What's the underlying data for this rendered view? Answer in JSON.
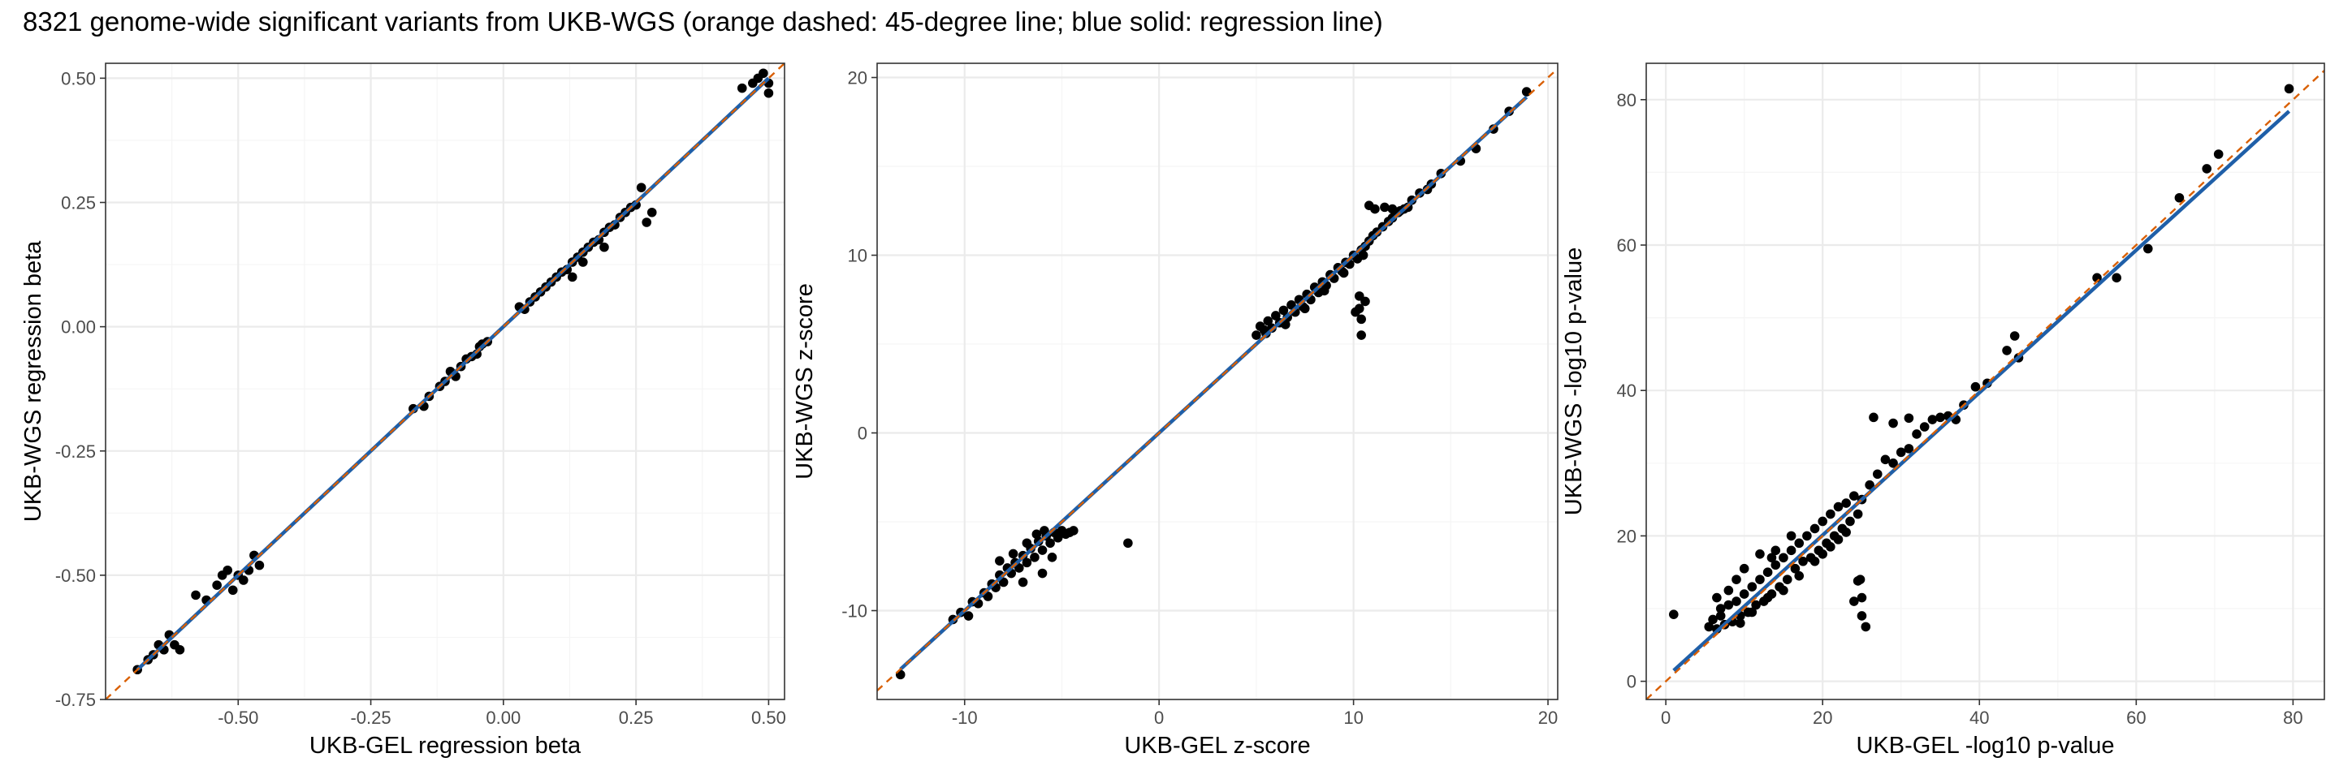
{
  "title": "8321 genome-wide significant variants from UKB-WGS (orange dashed: 45-degree line; blue solid: regression line)",
  "colors": {
    "points": "#000000",
    "identity_line": "#d95f02",
    "regression_line": "#1f5fa8",
    "grid_major": "#ebebeb",
    "grid_minor": "#f5f5f5",
    "panel_border": "#333333"
  },
  "chart_data": [
    {
      "type": "scatter",
      "xlabel": "UKB-GEL regression beta",
      "ylabel": "UKB-WGS regression beta",
      "xlim": [
        -0.75,
        0.53
      ],
      "ylim": [
        -0.75,
        0.53
      ],
      "xticks": [
        -0.5,
        -0.25,
        0.0,
        0.25,
        0.5
      ],
      "xtick_labels": [
        "-0.50",
        "-0.25",
        "0.00",
        "0.25",
        "0.50"
      ],
      "yticks": [
        -0.75,
        -0.5,
        -0.25,
        0.0,
        0.25,
        0.5
      ],
      "ytick_labels": [
        "-0.75",
        "-0.50",
        "-0.25",
        "0.00",
        "0.25",
        "0.50"
      ],
      "identity_line": true,
      "regression": {
        "slope": 1.0,
        "intercept": 0.0
      },
      "points": [
        [
          -0.69,
          -0.69
        ],
        [
          -0.67,
          -0.67
        ],
        [
          -0.66,
          -0.66
        ],
        [
          -0.65,
          -0.64
        ],
        [
          -0.64,
          -0.65
        ],
        [
          -0.63,
          -0.62
        ],
        [
          -0.62,
          -0.64
        ],
        [
          -0.61,
          -0.65
        ],
        [
          -0.58,
          -0.54
        ],
        [
          -0.56,
          -0.55
        ],
        [
          -0.54,
          -0.52
        ],
        [
          -0.53,
          -0.5
        ],
        [
          -0.52,
          -0.49
        ],
        [
          -0.51,
          -0.53
        ],
        [
          -0.5,
          -0.5
        ],
        [
          -0.49,
          -0.51
        ],
        [
          -0.48,
          -0.49
        ],
        [
          -0.47,
          -0.46
        ],
        [
          -0.46,
          -0.48
        ],
        [
          -0.17,
          -0.165
        ],
        [
          -0.15,
          -0.16
        ],
        [
          -0.14,
          -0.14
        ],
        [
          -0.12,
          -0.12
        ],
        [
          -0.11,
          -0.11
        ],
        [
          -0.1,
          -0.09
        ],
        [
          -0.09,
          -0.1
        ],
        [
          -0.08,
          -0.08
        ],
        [
          -0.07,
          -0.065
        ],
        [
          -0.06,
          -0.06
        ],
        [
          -0.05,
          -0.055
        ],
        [
          -0.045,
          -0.04
        ],
        [
          -0.04,
          -0.035
        ],
        [
          -0.03,
          -0.03
        ],
        [
          0.03,
          0.04
        ],
        [
          0.04,
          0.035
        ],
        [
          0.05,
          0.05
        ],
        [
          0.06,
          0.06
        ],
        [
          0.07,
          0.07
        ],
        [
          0.08,
          0.08
        ],
        [
          0.09,
          0.09
        ],
        [
          0.1,
          0.1
        ],
        [
          0.11,
          0.11
        ],
        [
          0.12,
          0.115
        ],
        [
          0.13,
          0.13
        ],
        [
          0.14,
          0.14
        ],
        [
          0.15,
          0.15
        ],
        [
          0.16,
          0.16
        ],
        [
          0.17,
          0.17
        ],
        [
          0.18,
          0.175
        ],
        [
          0.19,
          0.19
        ],
        [
          0.2,
          0.2
        ],
        [
          0.21,
          0.205
        ],
        [
          0.22,
          0.22
        ],
        [
          0.23,
          0.23
        ],
        [
          0.24,
          0.24
        ],
        [
          0.25,
          0.245
        ],
        [
          0.13,
          0.1
        ],
        [
          0.15,
          0.13
        ],
        [
          0.19,
          0.16
        ],
        [
          0.26,
          0.28
        ],
        [
          0.28,
          0.23
        ],
        [
          0.27,
          0.21
        ],
        [
          0.45,
          0.48
        ],
        [
          0.47,
          0.49
        ],
        [
          0.48,
          0.5
        ],
        [
          0.49,
          0.51
        ],
        [
          0.5,
          0.49
        ],
        [
          0.5,
          0.47
        ]
      ]
    },
    {
      "type": "scatter",
      "xlabel": "UKB-GEL z-score",
      "ylabel": "UKB-WGS z-score",
      "xlim": [
        -14.5,
        20.5
      ],
      "ylim": [
        -15,
        20.8
      ],
      "xticks": [
        -10,
        0,
        10,
        20
      ],
      "xtick_labels": [
        "-10",
        "0",
        "10",
        "20"
      ],
      "yticks": [
        -10,
        0,
        10,
        20
      ],
      "ytick_labels": [
        "-10",
        "0",
        "10",
        "20"
      ],
      "identity_line": true,
      "regression": {
        "slope": 1.0,
        "intercept": 0.0
      },
      "points": [
        [
          -13.3,
          -13.6
        ],
        [
          -10.6,
          -10.5
        ],
        [
          -10.2,
          -10.1
        ],
        [
          -9.8,
          -10.3
        ],
        [
          -9.6,
          -9.5
        ],
        [
          -9.3,
          -9.6
        ],
        [
          -9.0,
          -9.0
        ],
        [
          -8.8,
          -9.2
        ],
        [
          -8.6,
          -8.5
        ],
        [
          -8.4,
          -8.7
        ],
        [
          -8.2,
          -8.0
        ],
        [
          -8.0,
          -8.4
        ],
        [
          -7.8,
          -7.6
        ],
        [
          -7.6,
          -7.9
        ],
        [
          -7.4,
          -7.3
        ],
        [
          -7.2,
          -7.6
        ],
        [
          -7.0,
          -6.9
        ],
        [
          -6.8,
          -7.3
        ],
        [
          -6.6,
          -6.5
        ],
        [
          -6.4,
          -7.0
        ],
        [
          -6.2,
          -6.1
        ],
        [
          -6.0,
          -6.6
        ],
        [
          -5.8,
          -5.8
        ],
        [
          -5.6,
          -6.2
        ],
        [
          -5.4,
          -5.6
        ],
        [
          -5.2,
          -5.9
        ],
        [
          -5.0,
          -5.5
        ],
        [
          -4.8,
          -5.7
        ],
        [
          -4.6,
          -5.6
        ],
        [
          -4.4,
          -5.5
        ],
        [
          -7.0,
          -8.4
        ],
        [
          -6.0,
          -7.9
        ],
        [
          -5.5,
          -7.0
        ],
        [
          -8.2,
          -7.2
        ],
        [
          -7.5,
          -6.8
        ],
        [
          -6.8,
          -6.2
        ],
        [
          -6.3,
          -5.7
        ],
        [
          -5.9,
          -5.5
        ],
        [
          -1.6,
          -6.2
        ],
        [
          5.0,
          5.5
        ],
        [
          5.2,
          6.0
        ],
        [
          5.4,
          5.8
        ],
        [
          5.6,
          6.3
        ],
        [
          5.8,
          5.9
        ],
        [
          6.0,
          6.6
        ],
        [
          6.2,
          6.2
        ],
        [
          6.4,
          6.9
        ],
        [
          6.6,
          6.5
        ],
        [
          6.8,
          7.2
        ],
        [
          7.0,
          6.8
        ],
        [
          7.2,
          7.5
        ],
        [
          7.4,
          7.1
        ],
        [
          7.6,
          7.8
        ],
        [
          7.8,
          7.5
        ],
        [
          8.0,
          8.2
        ],
        [
          8.2,
          7.9
        ],
        [
          8.4,
          8.5
        ],
        [
          8.6,
          8.3
        ],
        [
          8.8,
          8.9
        ],
        [
          9.0,
          8.7
        ],
        [
          9.2,
          9.3
        ],
        [
          9.4,
          9.1
        ],
        [
          9.6,
          9.6
        ],
        [
          9.8,
          9.5
        ],
        [
          10.0,
          10.0
        ],
        [
          10.2,
          9.8
        ],
        [
          10.4,
          10.3
        ],
        [
          10.6,
          10.5
        ],
        [
          10.8,
          10.8
        ],
        [
          11.0,
          11.1
        ],
        [
          11.2,
          11.3
        ],
        [
          11.5,
          11.6
        ],
        [
          11.8,
          11.9
        ],
        [
          12.0,
          12.1
        ],
        [
          12.3,
          12.4
        ],
        [
          12.6,
          12.6
        ],
        [
          13.0,
          13.1
        ],
        [
          13.4,
          13.5
        ],
        [
          13.8,
          13.7
        ],
        [
          5.5,
          5.6
        ],
        [
          6.5,
          6.1
        ],
        [
          7.5,
          7.0
        ],
        [
          8.5,
          8.0
        ],
        [
          9.5,
          9.0
        ],
        [
          10.5,
          10.0
        ],
        [
          10.3,
          7.7
        ],
        [
          10.3,
          7.0
        ],
        [
          10.4,
          6.4
        ],
        [
          10.4,
          5.5
        ],
        [
          10.1,
          6.8
        ],
        [
          10.6,
          7.4
        ],
        [
          10.8,
          12.8
        ],
        [
          11.1,
          12.6
        ],
        [
          11.6,
          12.7
        ],
        [
          12.0,
          12.6
        ],
        [
          12.4,
          12.5
        ],
        [
          12.8,
          12.7
        ],
        [
          14.0,
          14.0
        ],
        [
          14.5,
          14.6
        ],
        [
          15.5,
          15.3
        ],
        [
          16.3,
          16.0
        ],
        [
          17.2,
          17.1
        ],
        [
          18.0,
          18.1
        ],
        [
          18.9,
          19.2
        ]
      ]
    },
    {
      "type": "scatter",
      "xlabel": "UKB-GEL -log10 p-value",
      "ylabel": "UKB-WGS -log10 p-value",
      "xlim": [
        -2.5,
        84
      ],
      "ylim": [
        -2.5,
        85
      ],
      "xticks": [
        0,
        20,
        40,
        60,
        80
      ],
      "xtick_labels": [
        "0",
        "20",
        "40",
        "60",
        "80"
      ],
      "yticks": [
        0,
        20,
        40,
        60,
        80
      ],
      "ytick_labels": [
        "0",
        "20",
        "40",
        "60",
        "80"
      ],
      "identity_line": true,
      "regression": {
        "slope": 0.98,
        "intercept": 0.5
      },
      "points": [
        [
          1.0,
          9.2
        ],
        [
          5.5,
          7.5
        ],
        [
          6.0,
          8.5
        ],
        [
          6.5,
          7.2
        ],
        [
          7.0,
          9.0
        ],
        [
          7.5,
          7.8
        ],
        [
          8.0,
          10.5
        ],
        [
          8.5,
          8.2
        ],
        [
          9.0,
          11.0
        ],
        [
          9.5,
          9.0
        ],
        [
          10.0,
          12.0
        ],
        [
          10.5,
          9.5
        ],
        [
          11.0,
          13.0
        ],
        [
          11.5,
          10.5
        ],
        [
          12.0,
          14.0
        ],
        [
          12.5,
          11.0
        ],
        [
          13.0,
          15.0
        ],
        [
          13.5,
          12.0
        ],
        [
          14.0,
          16.0
        ],
        [
          14.5,
          13.0
        ],
        [
          15.0,
          17.0
        ],
        [
          15.5,
          14.0
        ],
        [
          16.0,
          18.0
        ],
        [
          16.5,
          15.5
        ],
        [
          17.0,
          19.0
        ],
        [
          17.5,
          16.5
        ],
        [
          18.0,
          20.0
        ],
        [
          18.5,
          17.0
        ],
        [
          19.0,
          21.0
        ],
        [
          19.5,
          18.0
        ],
        [
          20.0,
          22.0
        ],
        [
          20.5,
          19.0
        ],
        [
          21.0,
          23.0
        ],
        [
          21.5,
          20.0
        ],
        [
          22.0,
          24.0
        ],
        [
          22.5,
          21.0
        ],
        [
          23.0,
          24.5
        ],
        [
          23.5,
          22.0
        ],
        [
          24.0,
          25.5
        ],
        [
          24.5,
          23.0
        ],
        [
          25.0,
          25.0
        ],
        [
          26.0,
          27.0
        ],
        [
          27.0,
          28.5
        ],
        [
          28.0,
          30.5
        ],
        [
          29.0,
          30.0
        ],
        [
          30.0,
          31.5
        ],
        [
          31.0,
          32.0
        ],
        [
          32.0,
          34.0
        ],
        [
          33.0,
          35.0
        ],
        [
          34.0,
          36.0
        ],
        [
          35.0,
          36.3
        ],
        [
          36.0,
          36.5
        ],
        [
          37.0,
          36.0
        ],
        [
          38.0,
          38.0
        ],
        [
          39.5,
          40.5
        ],
        [
          8.0,
          12.5
        ],
        [
          9.0,
          14.0
        ],
        [
          10.0,
          15.5
        ],
        [
          12.0,
          17.5
        ],
        [
          14.0,
          18.0
        ],
        [
          16.0,
          20.0
        ],
        [
          9.5,
          8.0
        ],
        [
          11.0,
          9.5
        ],
        [
          13.0,
          11.5
        ],
        [
          15.0,
          12.5
        ],
        [
          17.0,
          14.5
        ],
        [
          19.0,
          16.5
        ],
        [
          21.0,
          18.5
        ],
        [
          23.0,
          20.5
        ],
        [
          7.0,
          10.0
        ],
        [
          6.5,
          11.5
        ],
        [
          20.0,
          17.5
        ],
        [
          22.0,
          19.5
        ],
        [
          13.5,
          17.0
        ],
        [
          24.0,
          11.0
        ],
        [
          24.5,
          13.8
        ],
        [
          25.0,
          11.5
        ],
        [
          25.0,
          9.0
        ],
        [
          25.5,
          7.5
        ],
        [
          24.8,
          14.0
        ],
        [
          26.5,
          36.3
        ],
        [
          29.0,
          35.5
        ],
        [
          31.0,
          36.2
        ],
        [
          41.0,
          41.0
        ],
        [
          43.5,
          45.5
        ],
        [
          44.5,
          47.5
        ],
        [
          45.0,
          44.5
        ],
        [
          55.0,
          55.5
        ],
        [
          57.5,
          55.5
        ],
        [
          61.5,
          59.5
        ],
        [
          65.5,
          66.5
        ],
        [
          69.0,
          70.5
        ],
        [
          70.5,
          72.5
        ],
        [
          79.5,
          81.5
        ]
      ]
    }
  ]
}
